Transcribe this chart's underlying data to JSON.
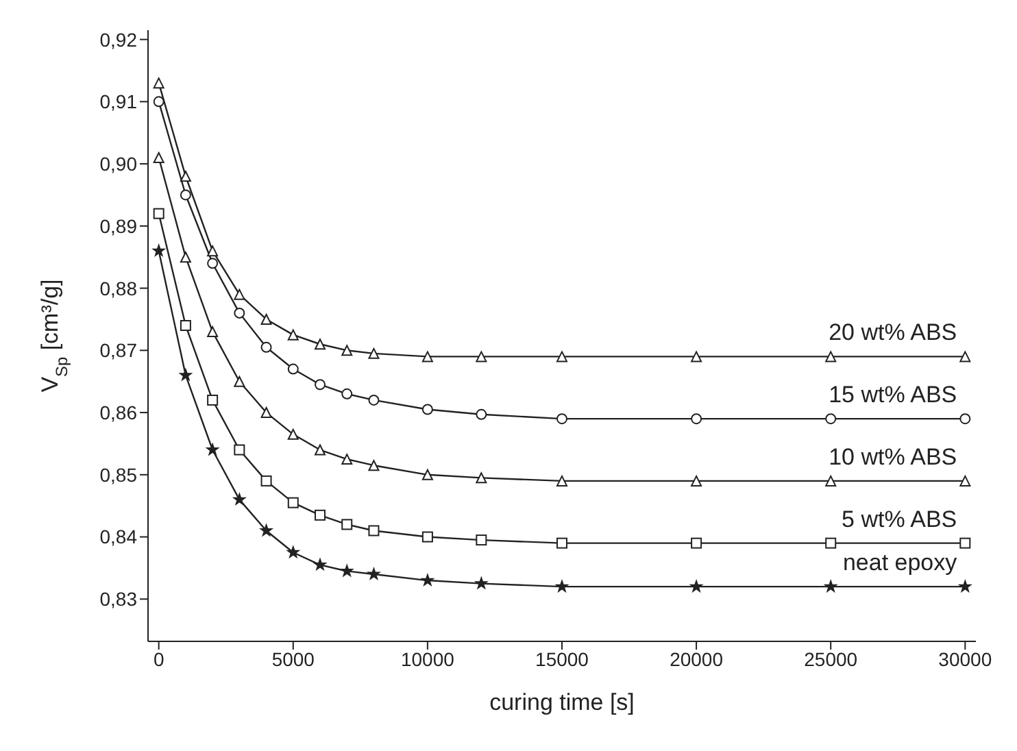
{
  "chart_data": {
    "type": "line",
    "xlabel": "curing time [s]",
    "ylabel": "V$_{Sp}$ [cm³/g]",
    "x": [
      0,
      1000,
      2000,
      3000,
      4000,
      5000,
      6000,
      7000,
      8000,
      10000,
      12000,
      15000,
      20000,
      25000,
      30000
    ],
    "series": [
      {
        "name": "20 wt% ABS",
        "color": "#222222",
        "marker": "triangle",
        "values": [
          0.913,
          0.898,
          0.886,
          0.879,
          0.875,
          0.8725,
          0.871,
          0.87,
          0.8695,
          0.869,
          0.869,
          0.869,
          0.869,
          0.869,
          0.869
        ]
      },
      {
        "name": "15 wt% ABS",
        "color": "#222222",
        "marker": "circle",
        "values": [
          0.91,
          0.895,
          0.884,
          0.876,
          0.8705,
          0.867,
          0.8645,
          0.863,
          0.862,
          0.8605,
          0.8597,
          0.859,
          0.859,
          0.859,
          0.859
        ]
      },
      {
        "name": "10 wt% ABS",
        "color": "#222222",
        "marker": "triangle",
        "values": [
          0.901,
          0.885,
          0.873,
          0.865,
          0.86,
          0.8565,
          0.854,
          0.8525,
          0.8515,
          0.85,
          0.8495,
          0.849,
          0.849,
          0.849,
          0.849
        ]
      },
      {
        "name": "5 wt% ABS",
        "color": "#222222",
        "marker": "square",
        "values": [
          0.892,
          0.874,
          0.862,
          0.854,
          0.849,
          0.8455,
          0.8435,
          0.842,
          0.841,
          0.84,
          0.8395,
          0.839,
          0.839,
          0.839,
          0.839
        ]
      },
      {
        "name": "neat epoxy",
        "color": "#222222",
        "marker": "star",
        "values": [
          0.886,
          0.866,
          0.854,
          0.846,
          0.841,
          0.8375,
          0.8355,
          0.8345,
          0.834,
          0.833,
          0.8325,
          0.832,
          0.832,
          0.832,
          0.832
        ]
      }
    ],
    "xlim": [
      -400,
      30400
    ],
    "xticks": [
      0,
      5000,
      10000,
      15000,
      20000,
      25000,
      30000
    ],
    "ylim": [
      0.8232,
      0.9215
    ],
    "yticks": [
      {
        "value": 0.83,
        "label": "0,83"
      },
      {
        "value": 0.84,
        "label": "0,84"
      },
      {
        "value": 0.85,
        "label": "0,85"
      },
      {
        "value": 0.86,
        "label": "0,86"
      },
      {
        "value": 0.87,
        "label": "0,87"
      },
      {
        "value": 0.88,
        "label": "0,88"
      },
      {
        "value": 0.89,
        "label": "0,89"
      },
      {
        "value": 0.9,
        "label": "0,90"
      },
      {
        "value": 0.91,
        "label": "0,91"
      },
      {
        "value": 0.92,
        "label": "0,92"
      }
    ],
    "grid": false,
    "legend": false,
    "line_style": "solid"
  }
}
